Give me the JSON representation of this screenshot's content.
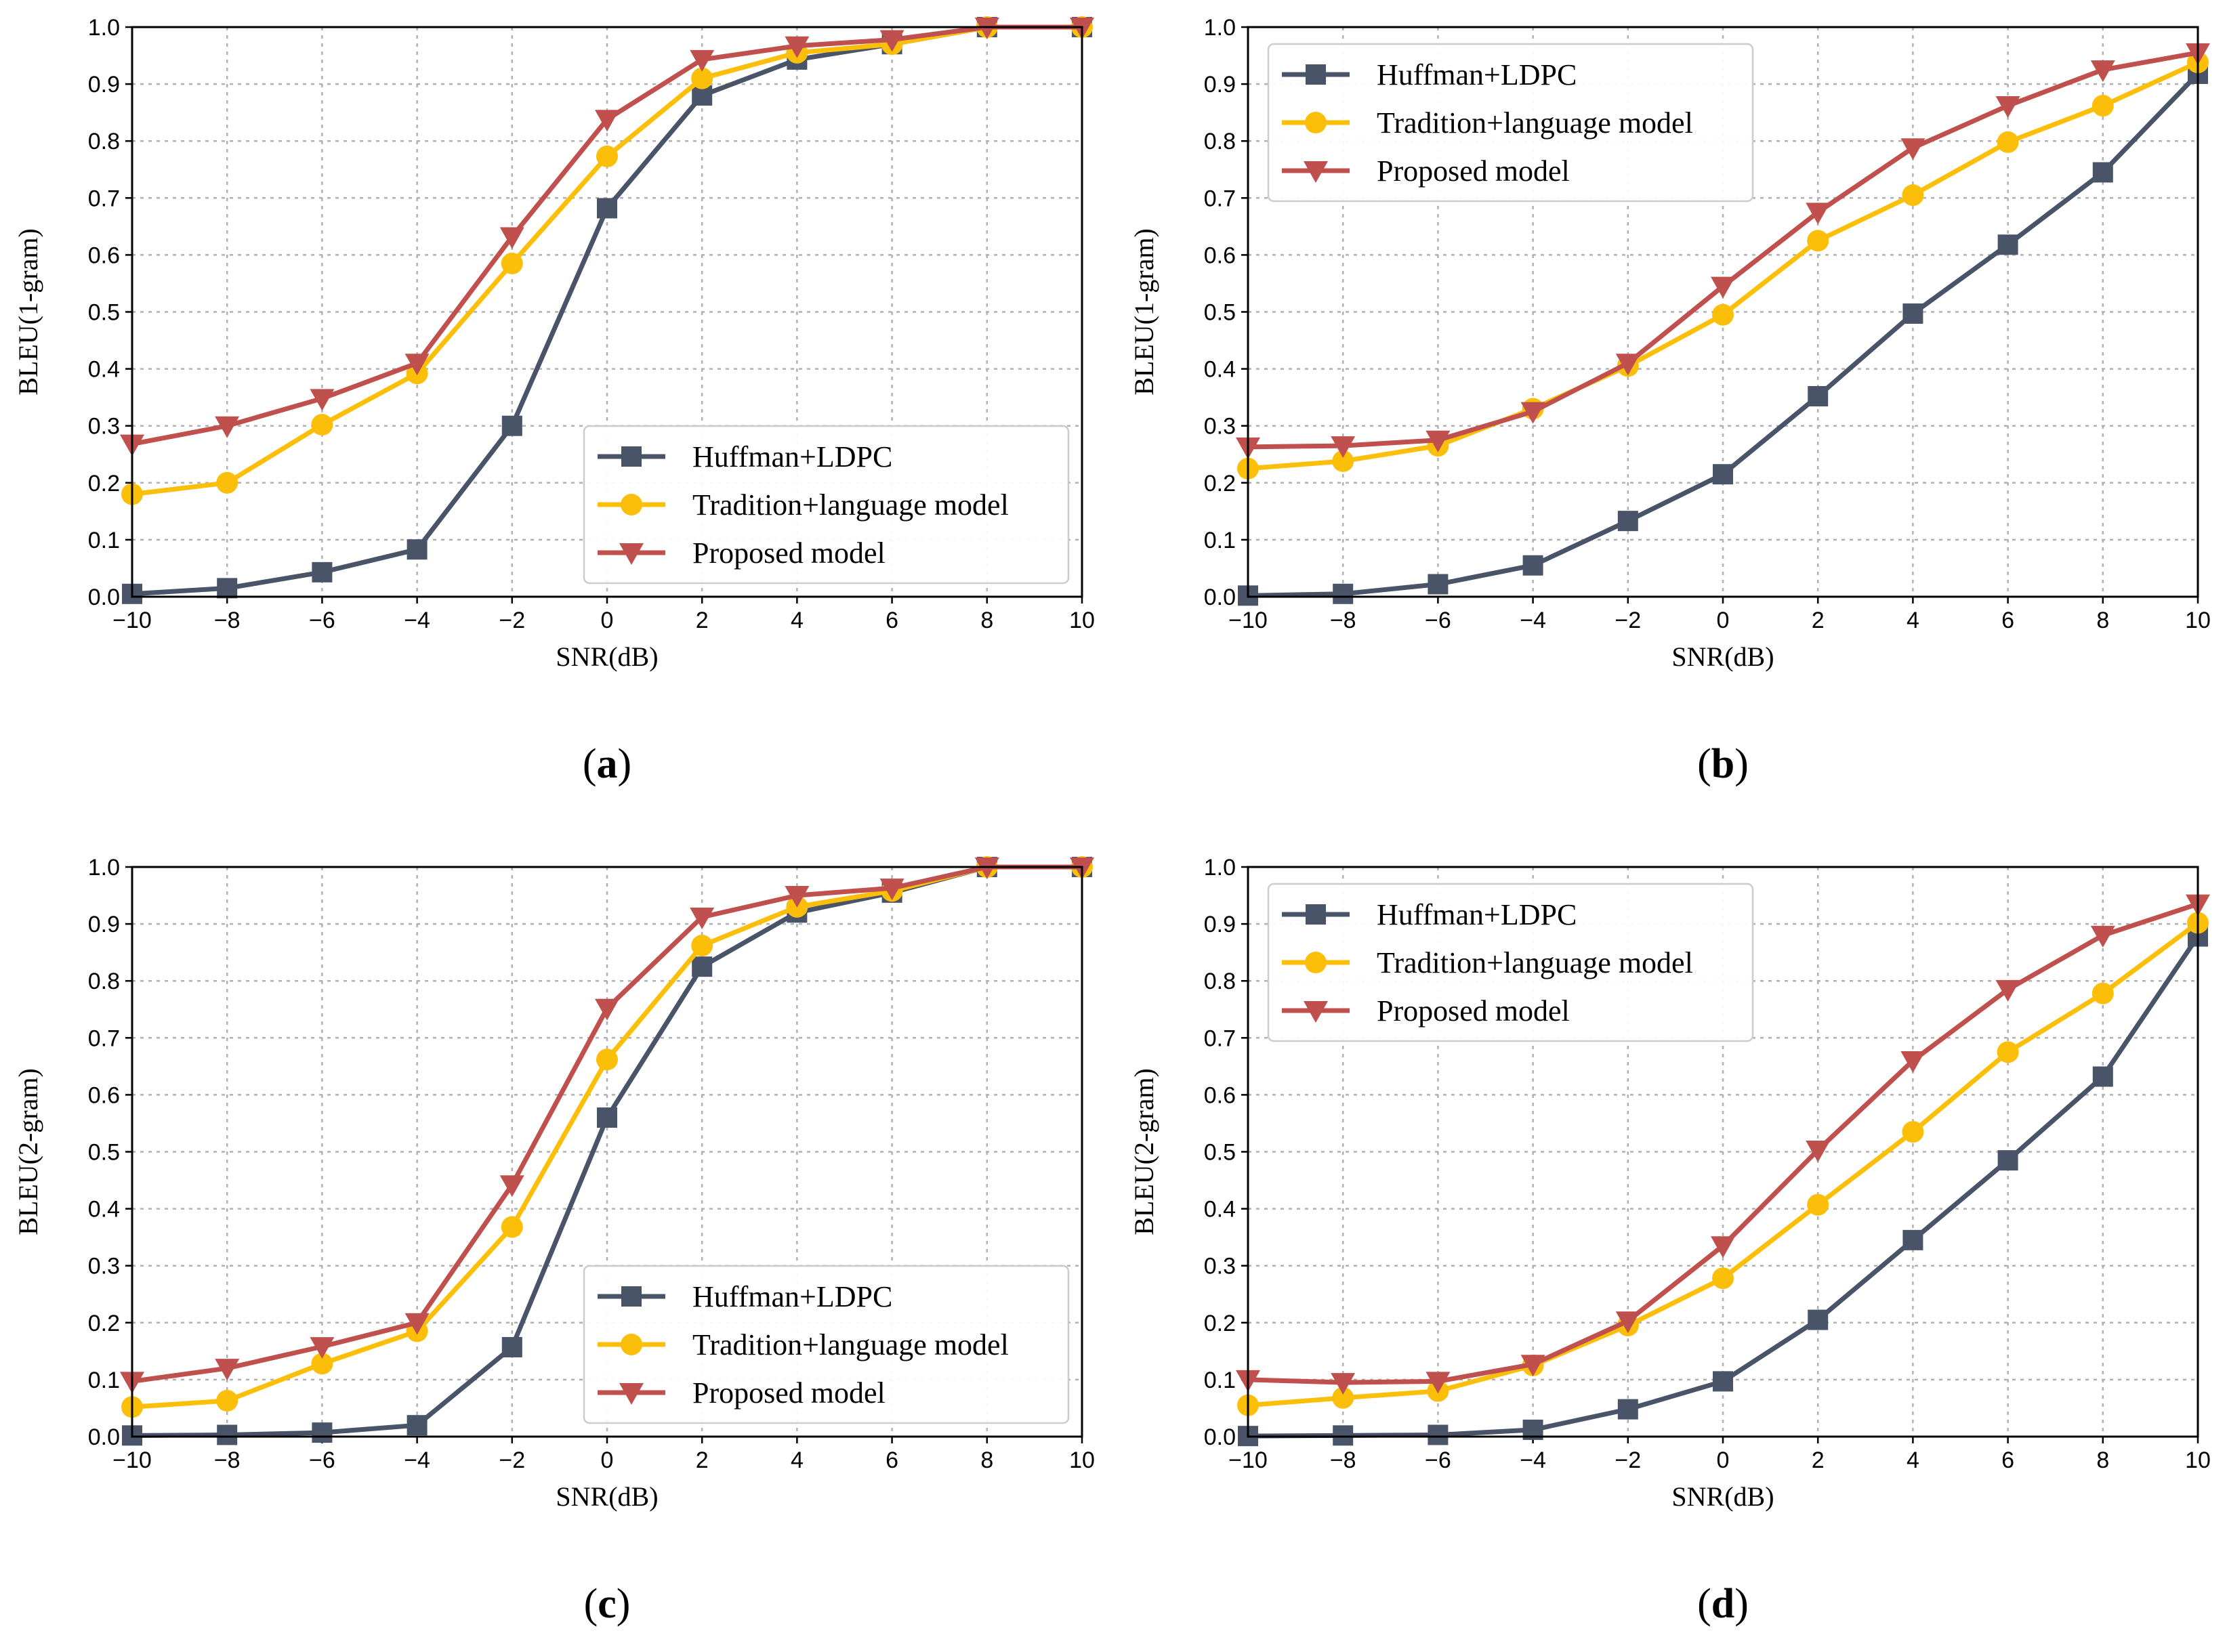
{
  "chart_data": [
    {
      "id": "a",
      "type": "line",
      "caption": "a",
      "xlabel": "SNR(dB)",
      "ylabel": "BLEU(1-gram)",
      "xlim": [
        -10,
        10
      ],
      "ylim": [
        0,
        1
      ],
      "xticks": [
        "−10",
        "−8",
        "−6",
        "−4",
        "−2",
        "0",
        "2",
        "4",
        "6",
        "8",
        "10"
      ],
      "yticks": [
        "0.0",
        "0.1",
        "0.2",
        "0.3",
        "0.4",
        "0.5",
        "0.6",
        "0.7",
        "0.8",
        "0.9",
        "1.0"
      ],
      "grid": true,
      "legend_position": "lower-right",
      "x": [
        -10,
        -8,
        -6,
        -4,
        -2,
        0,
        2,
        4,
        6,
        8,
        10
      ],
      "series": [
        {
          "name": "Huffman+LDPC",
          "marker": "square",
          "color": "#4a5468",
          "values": [
            0.005,
            0.015,
            0.043,
            0.083,
            0.3,
            0.682,
            0.88,
            0.943,
            0.97,
            1.0,
            1.0
          ]
        },
        {
          "name": "Tradition+language model",
          "marker": "circle",
          "color": "#fbbf0a",
          "values": [
            0.18,
            0.2,
            0.302,
            0.392,
            0.585,
            0.773,
            0.91,
            0.955,
            0.97,
            1.0,
            1.0
          ]
        },
        {
          "name": "Proposed model",
          "marker": "triangle-down",
          "color": "#c0504d",
          "values": [
            0.268,
            0.3,
            0.348,
            0.41,
            0.632,
            0.838,
            0.943,
            0.967,
            0.978,
            1.0,
            1.0
          ]
        }
      ]
    },
    {
      "id": "b",
      "type": "line",
      "caption": "b",
      "xlabel": "SNR(dB)",
      "ylabel": "BLEU(1-gram)",
      "xlim": [
        -10,
        10
      ],
      "ylim": [
        0,
        1
      ],
      "xticks": [
        "−10",
        "−8",
        "−6",
        "−4",
        "−2",
        "0",
        "2",
        "4",
        "6",
        "8",
        "10"
      ],
      "yticks": [
        "0.0",
        "0.1",
        "0.2",
        "0.3",
        "0.4",
        "0.5",
        "0.6",
        "0.7",
        "0.8",
        "0.9",
        "1.0"
      ],
      "grid": true,
      "legend_position": "upper-left",
      "x": [
        -10,
        -8,
        -6,
        -4,
        -2,
        0,
        2,
        4,
        6,
        8,
        10
      ],
      "series": [
        {
          "name": "Huffman+LDPC",
          "marker": "square",
          "color": "#4a5468",
          "values": [
            0.002,
            0.005,
            0.022,
            0.055,
            0.133,
            0.215,
            0.352,
            0.497,
            0.618,
            0.745,
            0.918
          ]
        },
        {
          "name": "Tradition+language model",
          "marker": "circle",
          "color": "#fbbf0a",
          "values": [
            0.225,
            0.238,
            0.265,
            0.33,
            0.405,
            0.495,
            0.625,
            0.705,
            0.798,
            0.862,
            0.938
          ]
        },
        {
          "name": "Proposed model",
          "marker": "triangle-down",
          "color": "#c0504d",
          "values": [
            0.263,
            0.265,
            0.275,
            0.325,
            0.41,
            0.545,
            0.675,
            0.788,
            0.862,
            0.925,
            0.955
          ]
        }
      ]
    },
    {
      "id": "c",
      "type": "line",
      "caption": "c",
      "xlabel": "SNR(dB)",
      "ylabel": "BLEU(2-gram)",
      "xlim": [
        -10,
        10
      ],
      "ylim": [
        0,
        1
      ],
      "xticks": [
        "−10",
        "−8",
        "−6",
        "−4",
        "−2",
        "0",
        "2",
        "4",
        "6",
        "8",
        "10"
      ],
      "yticks": [
        "0.0",
        "0.1",
        "0.2",
        "0.3",
        "0.4",
        "0.5",
        "0.6",
        "0.7",
        "0.8",
        "0.9",
        "1.0"
      ],
      "grid": true,
      "legend_position": "lower-right",
      "x": [
        -10,
        -8,
        -6,
        -4,
        -2,
        0,
        2,
        4,
        6,
        8,
        10
      ],
      "series": [
        {
          "name": "Huffman+LDPC",
          "marker": "square",
          "color": "#4a5468",
          "values": [
            0.002,
            0.003,
            0.007,
            0.02,
            0.157,
            0.56,
            0.825,
            0.92,
            0.955,
            1.0,
            1.0
          ]
        },
        {
          "name": "Tradition+language model",
          "marker": "circle",
          "color": "#fbbf0a",
          "values": [
            0.052,
            0.063,
            0.128,
            0.185,
            0.368,
            0.662,
            0.862,
            0.93,
            0.958,
            1.0,
            1.0
          ]
        },
        {
          "name": "Proposed model",
          "marker": "triangle-down",
          "color": "#c0504d",
          "values": [
            0.097,
            0.12,
            0.158,
            0.2,
            0.442,
            0.752,
            0.912,
            0.95,
            0.963,
            1.0,
            1.0
          ]
        }
      ]
    },
    {
      "id": "d",
      "type": "line",
      "caption": "d",
      "xlabel": "SNR(dB)",
      "ylabel": "BLEU(2-gram)",
      "xlim": [
        -10,
        10
      ],
      "ylim": [
        0,
        1
      ],
      "xticks": [
        "−10",
        "−8",
        "−6",
        "−4",
        "−2",
        "0",
        "2",
        "4",
        "6",
        "8",
        "10"
      ],
      "yticks": [
        "0.0",
        "0.1",
        "0.2",
        "0.3",
        "0.4",
        "0.5",
        "0.6",
        "0.7",
        "0.8",
        "0.9",
        "1.0"
      ],
      "grid": true,
      "legend_position": "upper-left",
      "x": [
        -10,
        -8,
        -6,
        -4,
        -2,
        0,
        2,
        4,
        6,
        8,
        10
      ],
      "series": [
        {
          "name": "Huffman+LDPC",
          "marker": "square",
          "color": "#4a5468",
          "values": [
            0.001,
            0.002,
            0.003,
            0.012,
            0.048,
            0.097,
            0.205,
            0.345,
            0.485,
            0.632,
            0.878
          ]
        },
        {
          "name": "Tradition+language model",
          "marker": "circle",
          "color": "#fbbf0a",
          "values": [
            0.055,
            0.068,
            0.08,
            0.125,
            0.195,
            0.278,
            0.407,
            0.535,
            0.675,
            0.778,
            0.902
          ]
        },
        {
          "name": "Proposed model",
          "marker": "triangle-down",
          "color": "#c0504d",
          "values": [
            0.1,
            0.095,
            0.097,
            0.127,
            0.203,
            0.335,
            0.503,
            0.66,
            0.785,
            0.88,
            0.935
          ]
        }
      ]
    }
  ]
}
